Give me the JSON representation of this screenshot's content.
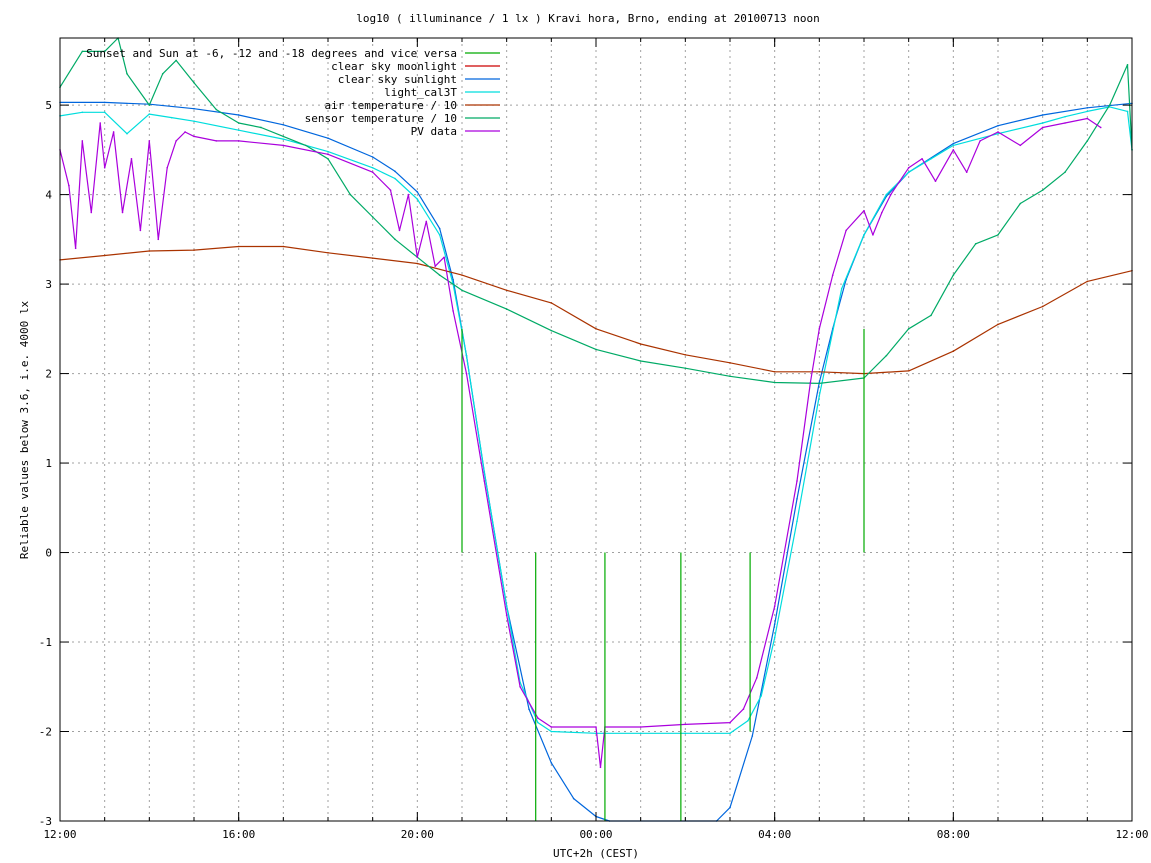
{
  "chart_data": {
    "type": "line",
    "title": "log10 ( illuminance / 1 lx ) Kravi hora, Brno, ending at 20100713 noon",
    "xlabel": "UTC+2h (CEST)",
    "ylabel": "Reliable values below 3.6, i.e. 4000 lx",
    "xlim": [
      0,
      24
    ],
    "ylim": [
      -3,
      5.75
    ],
    "x_ticks": [
      {
        "v": 0,
        "label": "12:00"
      },
      {
        "v": 4,
        "label": "16:00"
      },
      {
        "v": 8,
        "label": "20:00"
      },
      {
        "v": 12,
        "label": "00:00"
      },
      {
        "v": 16,
        "label": "04:00"
      },
      {
        "v": 20,
        "label": "08:00"
      },
      {
        "v": 24,
        "label": "12:00"
      }
    ],
    "x_minor_grid": [
      0,
      1,
      2,
      3,
      4,
      5,
      6,
      7,
      8,
      9,
      10,
      11,
      12,
      13,
      14,
      15,
      16,
      17,
      18,
      19,
      20,
      21,
      22,
      23,
      24
    ],
    "y_ticks": [
      {
        "v": -3,
        "label": "-3"
      },
      {
        "v": -2,
        "label": "-2"
      },
      {
        "v": -1,
        "label": "-1"
      },
      {
        "v": 0,
        "label": "0"
      },
      {
        "v": 1,
        "label": "1"
      },
      {
        "v": 2,
        "label": "2"
      },
      {
        "v": 3,
        "label": "3"
      },
      {
        "v": 4,
        "label": "4"
      },
      {
        "v": 5,
        "label": "5"
      }
    ],
    "grid": true,
    "legend_position": "top-left",
    "series": [
      {
        "name": "Sunset and Sun at -6, -12 and -18 degrees and vice versa",
        "color": "#00aa00",
        "style": "impulses",
        "x": [
          9.0,
          9.7,
          10.65,
          12.2,
          13.9,
          15.45,
          17.0,
          18.0
        ],
        "values": [
          0,
          0,
          0,
          0,
          0,
          0,
          0,
          0
        ],
        "bases": [
          2.5,
          0,
          -3,
          -3,
          -3,
          -2,
          0,
          2.5
        ]
      },
      {
        "name": "clear sky moonlight",
        "color": "#cc0000",
        "x": [],
        "values": []
      },
      {
        "name": "clear sky sunlight",
        "color": "#0066dd",
        "x": [
          0,
          1,
          2,
          3,
          4,
          5,
          6,
          7,
          7.5,
          8,
          8.5,
          8.8,
          9.1,
          9.5,
          10,
          10.5,
          11,
          11.5,
          12,
          12.3,
          14.7,
          15,
          15.5,
          16,
          16.5,
          17,
          17.3,
          17.6,
          18,
          18.5,
          19,
          20,
          21,
          22,
          23,
          24
        ],
        "values": [
          5.03,
          5.03,
          5.01,
          4.96,
          4.89,
          4.78,
          4.63,
          4.42,
          4.26,
          4.03,
          3.62,
          3.05,
          2.2,
          0.9,
          -0.6,
          -1.75,
          -2.35,
          -2.75,
          -2.95,
          -3.0,
          -3.0,
          -2.85,
          -2.05,
          -0.8,
          0.6,
          1.9,
          2.5,
          3.05,
          3.55,
          3.98,
          4.25,
          4.57,
          4.77,
          4.89,
          4.97,
          5.02
        ]
      },
      {
        "name": "light_cal3T",
        "color": "#00dddd",
        "x": [
          0,
          0.5,
          1,
          1.5,
          2,
          2.5,
          3,
          4,
          5,
          6,
          7,
          7.5,
          8,
          8.5,
          8.8,
          9.1,
          9.5,
          10,
          10.3,
          10.7,
          11,
          12,
          13,
          14,
          15,
          15.4,
          15.7,
          16,
          16.5,
          17,
          17.5,
          18,
          18.5,
          19,
          19.5,
          20,
          21,
          22,
          22.5,
          23,
          23.5,
          23.9,
          24
        ],
        "values": [
          4.88,
          4.92,
          4.92,
          4.68,
          4.9,
          4.86,
          4.82,
          4.72,
          4.62,
          4.48,
          4.3,
          4.18,
          3.95,
          3.55,
          3.0,
          2.2,
          0.9,
          -0.6,
          -1.45,
          -1.9,
          -2.0,
          -2.02,
          -2.02,
          -2.02,
          -2.02,
          -1.88,
          -1.6,
          -0.95,
          0.35,
          1.75,
          2.95,
          3.55,
          4.0,
          4.25,
          4.4,
          4.55,
          4.68,
          4.8,
          4.87,
          4.93,
          4.98,
          4.93,
          4.5
        ]
      },
      {
        "name": "air temperature / 10",
        "color": "#aa3300",
        "x": [
          0,
          1,
          2,
          3,
          4,
          5,
          6,
          7,
          8,
          9,
          10,
          11,
          12,
          13,
          14,
          15,
          16,
          17,
          18,
          19,
          20,
          21,
          22,
          23,
          24
        ],
        "values": [
          3.27,
          3.32,
          3.37,
          3.38,
          3.42,
          3.42,
          3.35,
          3.29,
          3.23,
          3.1,
          2.93,
          2.79,
          2.5,
          2.33,
          2.21,
          2.12,
          2.02,
          2.02,
          2.0,
          2.03,
          2.25,
          2.55,
          2.75,
          3.03,
          3.15
        ]
      },
      {
        "name": "sensor temperature / 10",
        "color": "#00aa66",
        "x": [
          0,
          0.5,
          1,
          1.3,
          1.5,
          2,
          2.3,
          2.6,
          3,
          3.5,
          4,
          4.5,
          5,
          5.5,
          6,
          6.5,
          7,
          7.5,
          8,
          8.5,
          9,
          10,
          11,
          12,
          13,
          14,
          15,
          16,
          17,
          18,
          18.5,
          19,
          19.5,
          20,
          20.5,
          21,
          21.5,
          22,
          22.5,
          23,
          23.5,
          23.9,
          24
        ],
        "values": [
          5.2,
          5.6,
          5.6,
          5.75,
          5.35,
          5.0,
          5.35,
          5.5,
          5.25,
          4.95,
          4.8,
          4.75,
          4.65,
          4.55,
          4.4,
          4.0,
          3.75,
          3.5,
          3.3,
          3.1,
          2.93,
          2.72,
          2.48,
          2.27,
          2.14,
          2.06,
          1.97,
          1.9,
          1.89,
          1.95,
          2.2,
          2.5,
          2.65,
          3.1,
          3.45,
          3.55,
          3.9,
          4.05,
          4.25,
          4.6,
          5.0,
          5.45,
          4.5
        ]
      },
      {
        "name": "PV data",
        "color": "#aa00dd",
        "x": [
          0,
          0.2,
          0.35,
          0.5,
          0.7,
          0.9,
          1.0,
          1.2,
          1.4,
          1.6,
          1.8,
          2.0,
          2.2,
          2.4,
          2.6,
          2.8,
          3.0,
          3.5,
          4,
          5,
          6,
          7,
          7.4,
          7.6,
          7.8,
          8.0,
          8.2,
          8.4,
          8.6,
          8.8,
          9.1,
          9.5,
          10,
          10.3,
          10.7,
          11,
          12,
          12.1,
          12.2,
          13,
          14,
          15,
          15.3,
          15.6,
          16,
          16.5,
          16.8,
          17,
          17.3,
          17.6,
          18,
          18.2,
          18.4,
          18.6,
          18.8,
          19,
          19.3,
          19.6,
          20,
          20.3,
          20.6,
          21,
          21.5,
          22,
          22.5,
          23,
          23.3
        ],
        "values": [
          4.5,
          4.1,
          3.4,
          4.6,
          3.8,
          4.8,
          4.3,
          4.7,
          3.8,
          4.4,
          3.6,
          4.6,
          3.5,
          4.3,
          4.6,
          4.7,
          4.65,
          4.6,
          4.6,
          4.55,
          4.45,
          4.25,
          4.05,
          3.6,
          4.0,
          3.3,
          3.7,
          3.2,
          3.3,
          2.7,
          2.0,
          0.8,
          -0.7,
          -1.5,
          -1.85,
          -1.95,
          -1.95,
          -2.4,
          -1.95,
          -1.95,
          -1.92,
          -1.9,
          -1.75,
          -1.4,
          -0.6,
          0.8,
          1.9,
          2.5,
          3.1,
          3.6,
          3.82,
          3.55,
          3.8,
          4.0,
          4.15,
          4.3,
          4.4,
          4.15,
          4.5,
          4.25,
          4.6,
          4.7,
          4.55,
          4.75,
          4.8,
          4.85,
          4.75
        ]
      }
    ]
  }
}
